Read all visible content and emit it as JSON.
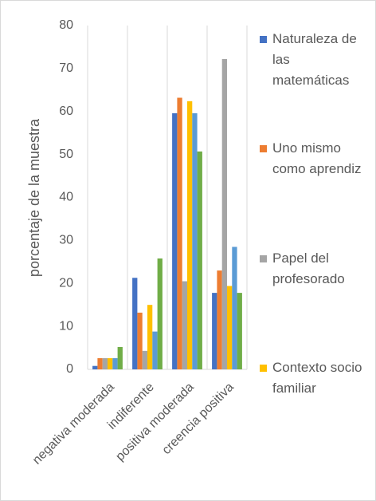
{
  "chart_data": {
    "type": "bar",
    "y_label": "porcentaje de la muestra",
    "categories": [
      "negativa moderada",
      "indiferente",
      "positiva moderada",
      "creencia positiva"
    ],
    "series": [
      {
        "name": "Naturaleza de las matemáticas",
        "color": "#4472c4",
        "values": [
          0.8,
          21.3,
          59.6,
          17.8
        ]
      },
      {
        "name": "Uno mismo como aprendiz",
        "color": "#ed7d31",
        "values": [
          2.6,
          13.2,
          63.2,
          23.0
        ]
      },
      {
        "name": "Papel del profesorado",
        "color": "#a5a5a5",
        "values": [
          2.6,
          4.3,
          20.5,
          72.2
        ]
      },
      {
        "name": "Contexto socio familiar",
        "color": "#ffc000",
        "values": [
          2.6,
          15.0,
          62.4,
          19.4
        ]
      },
      {
        "color": "#5b9bd5",
        "values": [
          2.6,
          8.8,
          59.6,
          28.5
        ]
      },
      {
        "color": "#70ad47",
        "values": [
          5.2,
          25.8,
          50.7,
          17.8
        ]
      }
    ],
    "ylim": [
      0,
      80
    ],
    "yticks": [
      0,
      10,
      20,
      30,
      40,
      50,
      60,
      70,
      80
    ]
  }
}
